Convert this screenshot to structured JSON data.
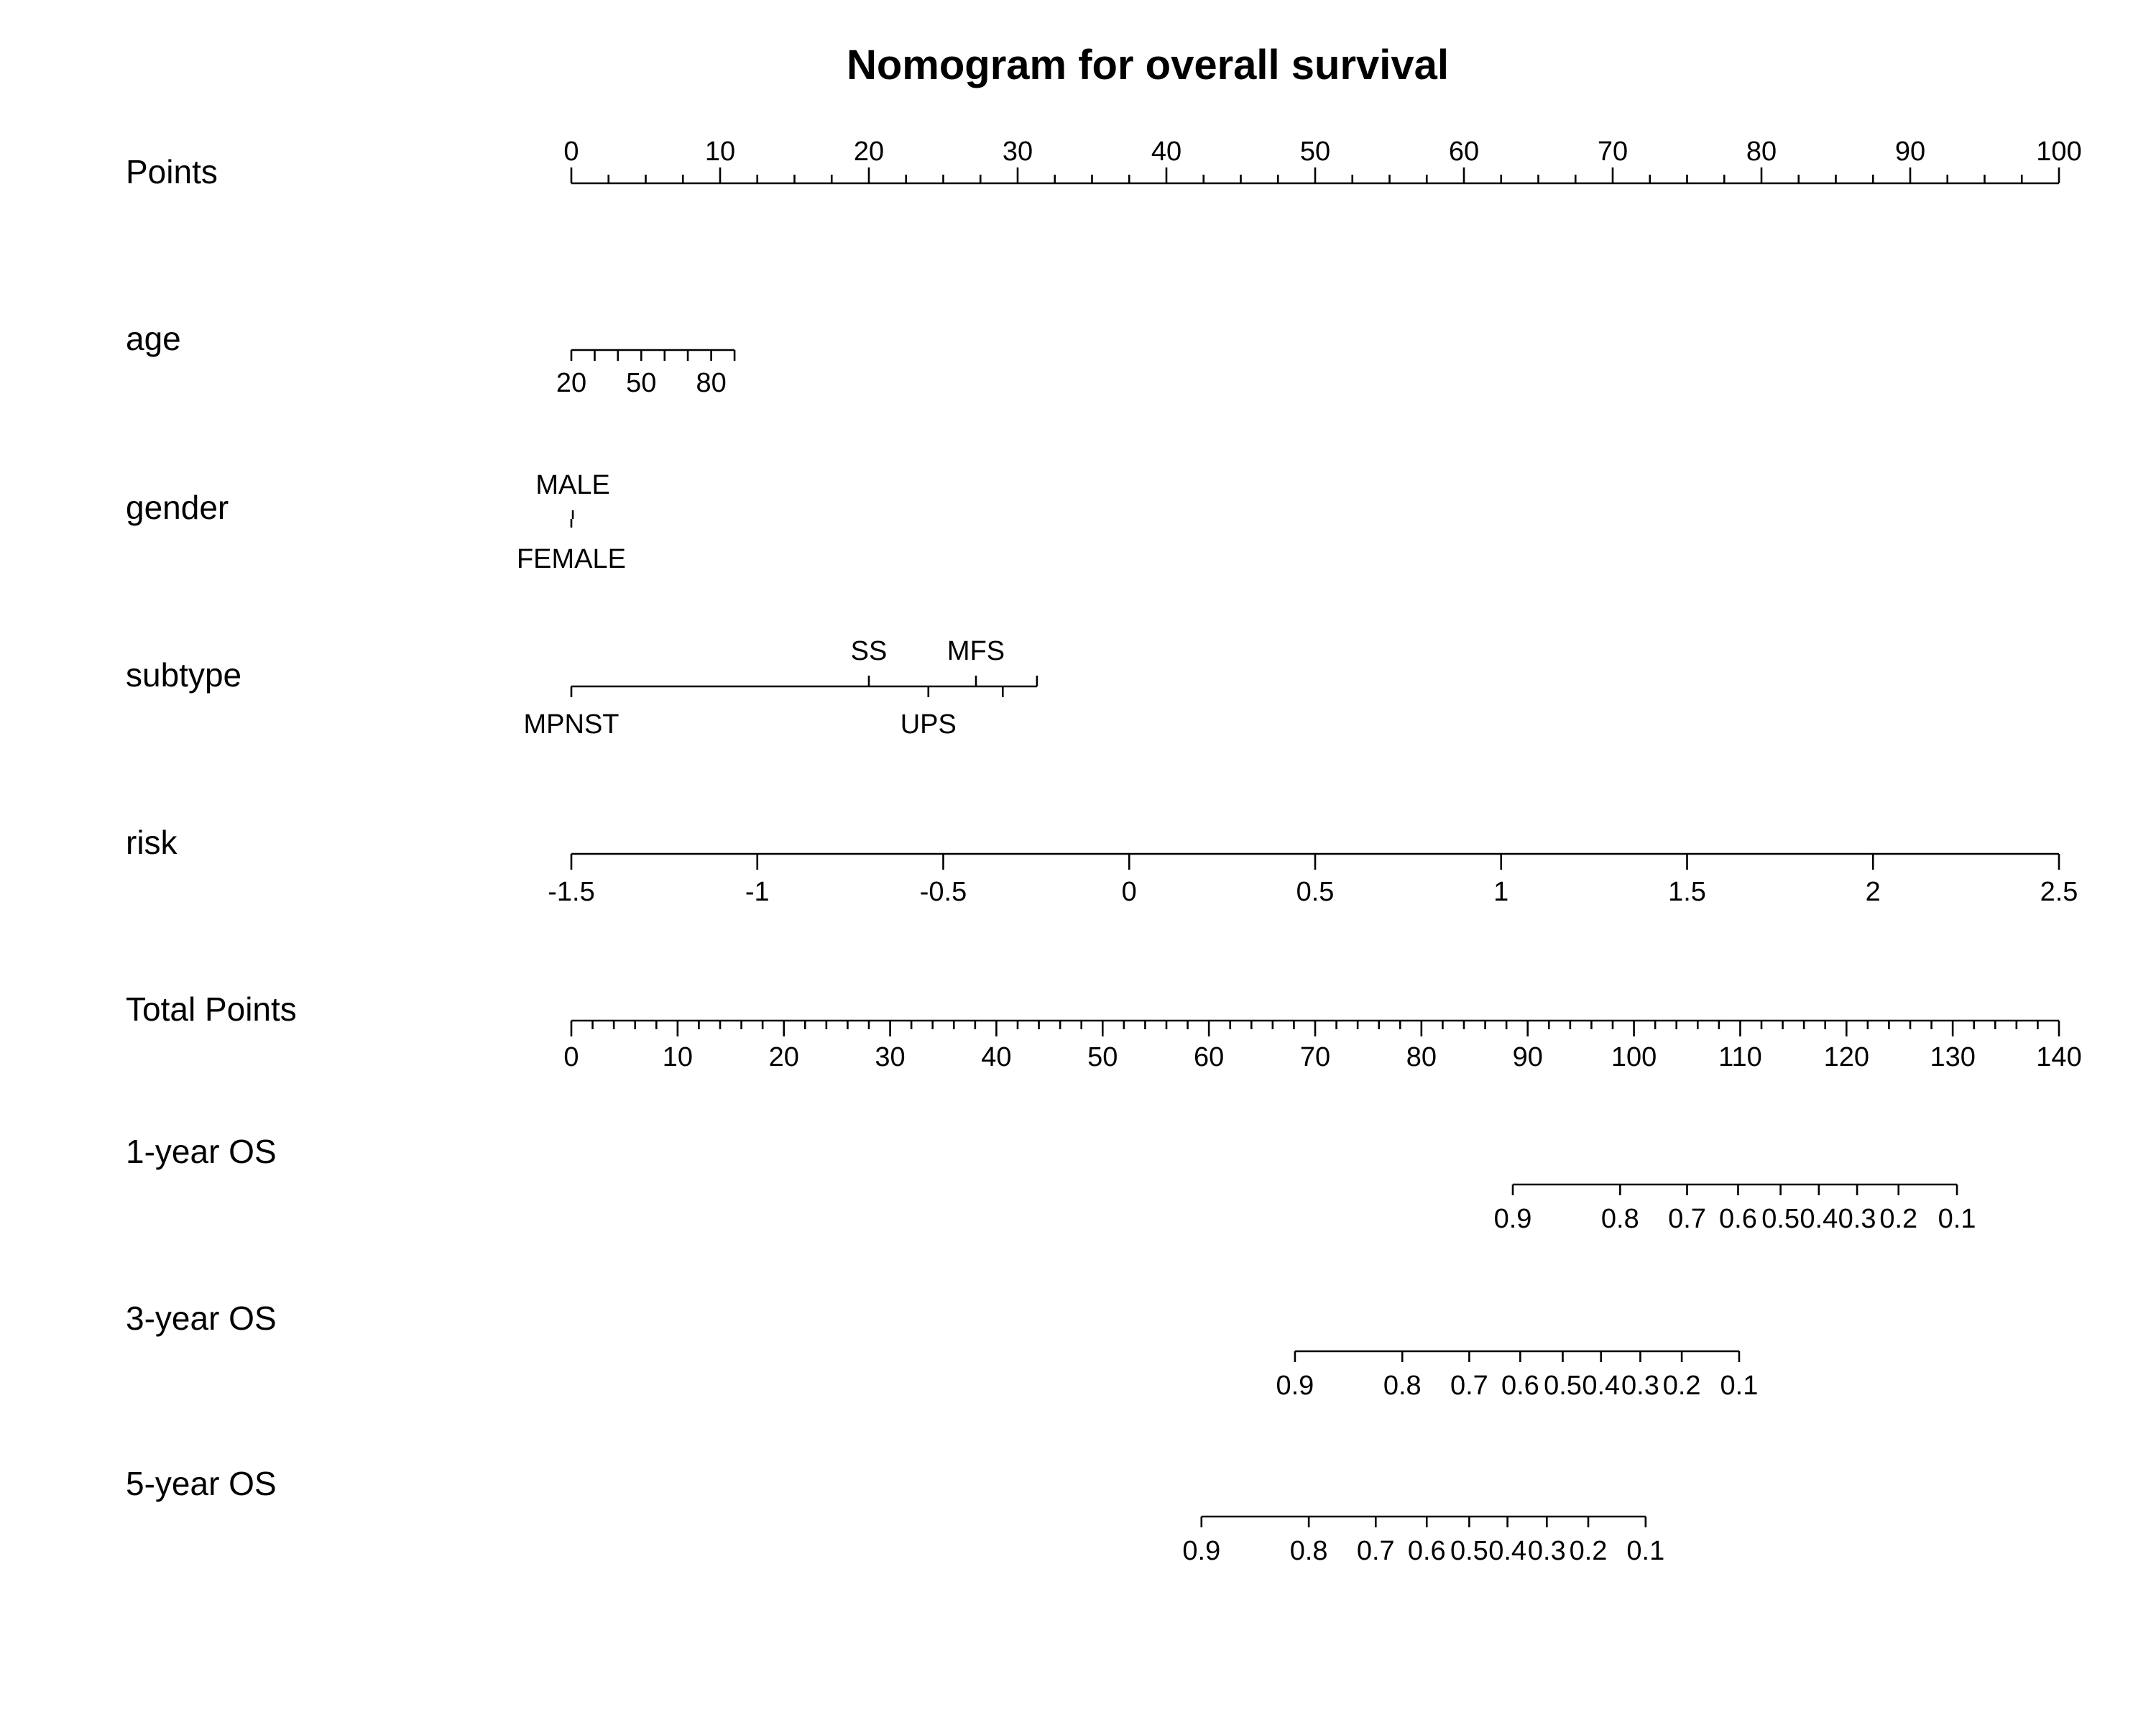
{
  "chart_data": {
    "type": "nomogram",
    "title": "Nomogram for overall survival",
    "rows": [
      {
        "label": "Points",
        "axis": {
          "min": 0,
          "max": 100,
          "major": [
            0,
            10,
            20,
            30,
            40,
            50,
            60,
            70,
            80,
            90,
            100
          ],
          "minor_step": 2.5
        },
        "tick_label_position": "above"
      },
      {
        "label": "age",
        "ticks": [
          {
            "value": 20,
            "points": 0
          },
          {
            "value": 50,
            "points": 4.7
          },
          {
            "value": 80,
            "points": 9.4
          }
        ],
        "minor_ticks_points": [
          0,
          1.57,
          3.13,
          4.7,
          6.27,
          7.83,
          9.4,
          10.97
        ],
        "end_points": 10.97,
        "tick_label_position": "below"
      },
      {
        "label": "gender",
        "ticks": [
          {
            "value": "MALE",
            "points": 0.1,
            "label_position": "above"
          },
          {
            "value": "FEMALE",
            "points": 0,
            "label_position": "below"
          }
        ]
      },
      {
        "label": "subtype",
        "ticks": [
          {
            "value": "MPNST",
            "points": 0,
            "label_position": "below"
          },
          {
            "value": "SS",
            "points": 20,
            "label_position": "above"
          },
          {
            "value": "UPS",
            "points": 24,
            "label_position": "below"
          },
          {
            "value": "MFS",
            "points": 27.2,
            "label_position": "above"
          },
          {
            "value": "",
            "points": 29,
            "label_position": "below"
          },
          {
            "value": "",
            "points": 31.3,
            "label_position": "above"
          }
        ]
      },
      {
        "label": "risk",
        "scale": {
          "value_min": -1.5,
          "value_max": 2.5,
          "points_min": 0,
          "points_max": 100
        },
        "ticks": [
          -1.5,
          -1,
          -0.5,
          0,
          0.5,
          1,
          1.5,
          2,
          2.5
        ],
        "tick_labels": [
          "-1.5",
          "-1",
          "-0.5",
          "0",
          "0.5",
          "1",
          "1.5",
          "2",
          "2.5"
        ],
        "tick_label_position": "below"
      },
      {
        "label": "Total Points",
        "axis": {
          "min": 0,
          "max": 140,
          "major": [
            0,
            10,
            20,
            30,
            40,
            50,
            60,
            70,
            80,
            90,
            100,
            110,
            120,
            130,
            140
          ],
          "minor_step": 2
        },
        "tick_label_position": "below"
      },
      {
        "label": "1-year OS",
        "total_points_ticks": [
          {
            "label": "0.9",
            "total_points": 88.6
          },
          {
            "label": "0.8",
            "total_points": 98.7
          },
          {
            "label": "0.7",
            "total_points": 105
          },
          {
            "label": "0.6",
            "total_points": 109.8
          },
          {
            "label": "0.5",
            "total_points": 113.8
          },
          {
            "label": "0.4",
            "total_points": 117.4
          },
          {
            "label": "0.3",
            "total_points": 121
          },
          {
            "label": "0.2",
            "total_points": 124.9
          },
          {
            "label": "0.1",
            "total_points": 130.4
          }
        ],
        "tick_label_position": "below"
      },
      {
        "label": "3-year OS",
        "total_points_ticks": [
          {
            "label": "0.9",
            "total_points": 68.1
          },
          {
            "label": "0.8",
            "total_points": 78.2
          },
          {
            "label": "0.7",
            "total_points": 84.5
          },
          {
            "label": "0.6",
            "total_points": 89.3
          },
          {
            "label": "0.5",
            "total_points": 93.3
          },
          {
            "label": "0.4",
            "total_points": 96.9
          },
          {
            "label": "0.3",
            "total_points": 100.6
          },
          {
            "label": "0.2",
            "total_points": 104.5
          },
          {
            "label": "0.1",
            "total_points": 109.9
          }
        ],
        "tick_label_position": "below"
      },
      {
        "label": "5-year OS",
        "total_points_ticks": [
          {
            "label": "0.9",
            "total_points": 59.3
          },
          {
            "label": "0.8",
            "total_points": 69.4
          },
          {
            "label": "0.7",
            "total_points": 75.7
          },
          {
            "label": "0.6",
            "total_points": 80.5
          },
          {
            "label": "0.5",
            "total_points": 84.5
          },
          {
            "label": "0.4",
            "total_points": 88.1
          },
          {
            "label": "0.3",
            "total_points": 91.8
          },
          {
            "label": "0.2",
            "total_points": 95.7
          },
          {
            "label": "0.1",
            "total_points": 101.1
          }
        ],
        "tick_label_position": "below"
      }
    ]
  }
}
